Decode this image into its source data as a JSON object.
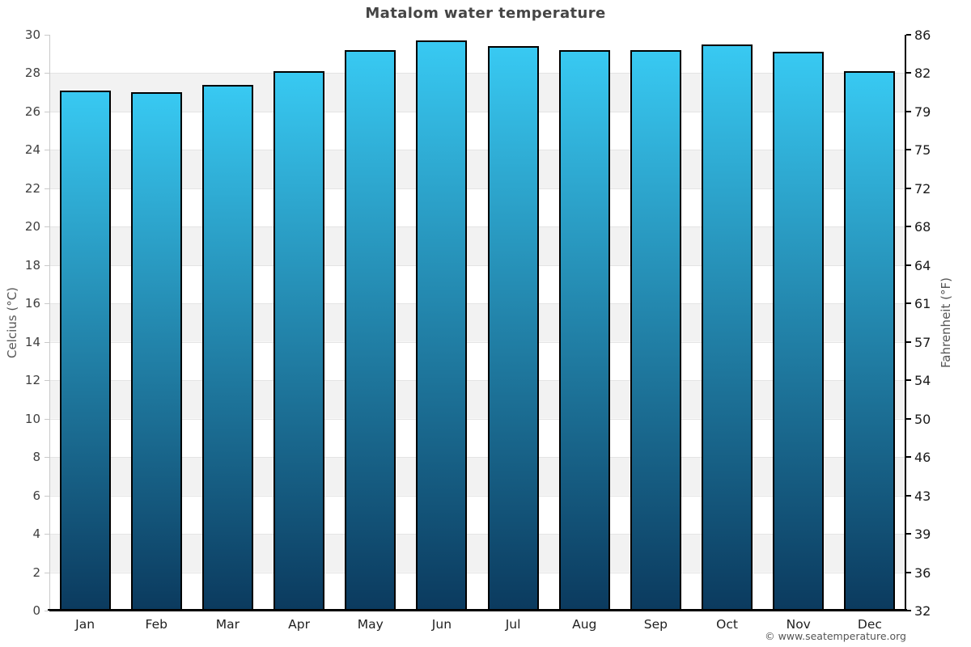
{
  "chart_data": {
    "type": "bar",
    "title": "Matalom water temperature",
    "categories": [
      "Jan",
      "Feb",
      "Mar",
      "Apr",
      "May",
      "Jun",
      "Jul",
      "Aug",
      "Sep",
      "Oct",
      "Nov",
      "Dec"
    ],
    "values": [
      27.1,
      27.0,
      27.4,
      28.1,
      29.2,
      29.7,
      29.4,
      29.2,
      29.2,
      29.5,
      29.1,
      28.1
    ],
    "ylabel_left": "Celcius (°C)",
    "ylabel_right": "Fahrenheit (°F)",
    "yticks_celsius": [
      30,
      28,
      26,
      24,
      22,
      20,
      18,
      16,
      14,
      12,
      10,
      8,
      6,
      4,
      2,
      0
    ],
    "yticks_fahrenheit": [
      86,
      82,
      79,
      75,
      72,
      68,
      64,
      61,
      57,
      54,
      50,
      46,
      43,
      39,
      36,
      32
    ],
    "ylim": [
      0,
      30
    ],
    "grid": "alternating-horizontal-bands",
    "legend": "none",
    "colors": {
      "bar_gradient_top": "#38c9f2",
      "bar_gradient_bottom": "#0b3a5e",
      "bar_border": "#000000",
      "stripe": "#f2f2f2",
      "title_text": "#454545"
    },
    "footer": "© www.seatemperature.org"
  }
}
